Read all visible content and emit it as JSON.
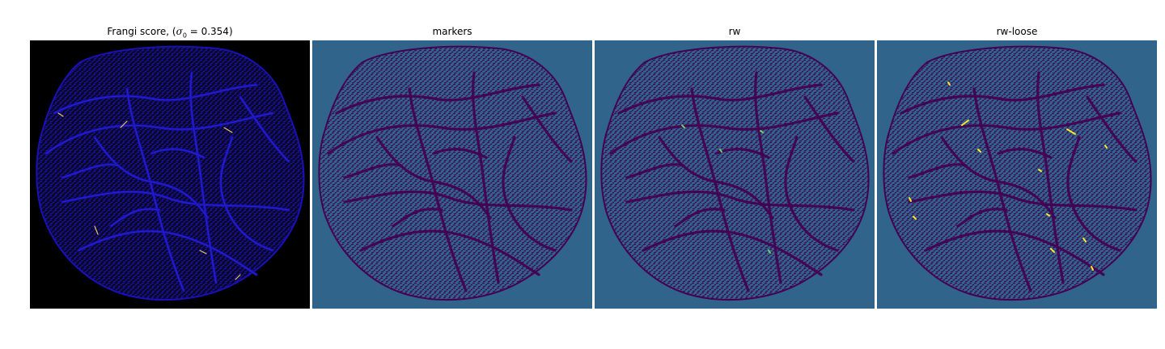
{
  "figure": {
    "panels": [
      {
        "title_prefix": "Frangi score, (",
        "title_sigma": "σ",
        "title_sub": "0",
        "title_suffix": " = 0.354)",
        "background": "#000000",
        "vessel_color": "#1a10b8",
        "highlight_color": "#e8c860"
      },
      {
        "title": "markers",
        "background": "#30648a",
        "vessel_color": "#440154"
      },
      {
        "title": "rw",
        "background": "#30648a",
        "vessel_color": "#440154",
        "highlight_color": "#6fd35a"
      },
      {
        "title": "rw-loose",
        "background": "#30648a",
        "vessel_color": "#440154",
        "highlight_color": "#fde725"
      }
    ]
  }
}
